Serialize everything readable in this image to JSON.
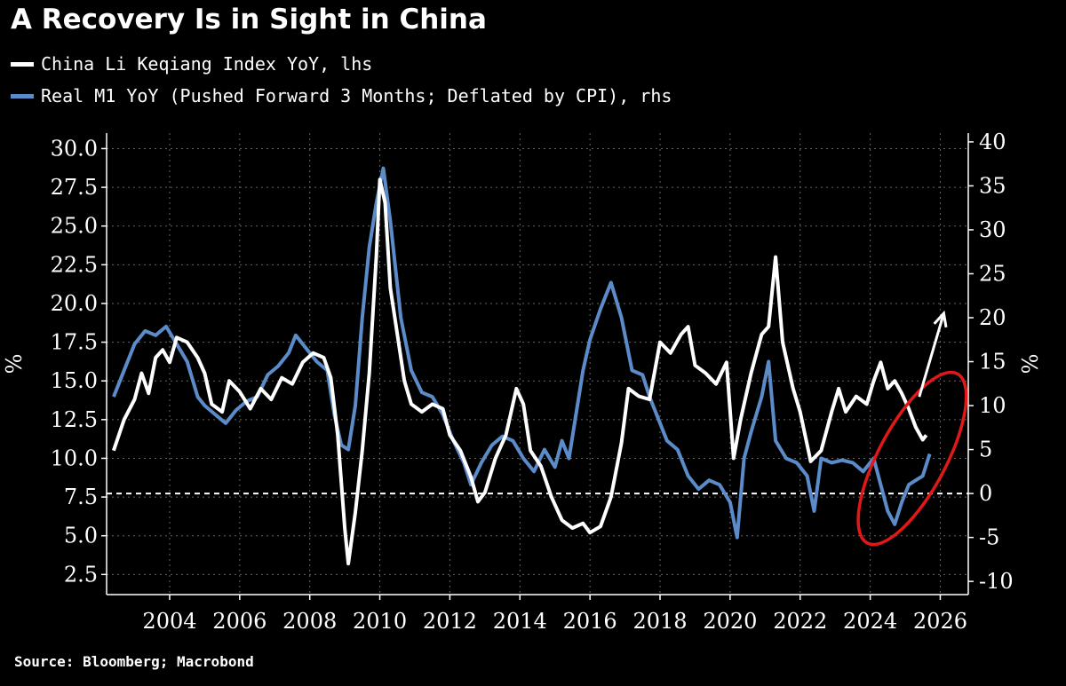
{
  "title": "A Recovery Is in Sight in China",
  "source": "Source: Bloomberg; Macrobond",
  "colors": {
    "background": "#000000",
    "white_series": "#ffffff",
    "blue_series": "#5b8cc9",
    "annotation": "#e01818",
    "grid": "#666666"
  },
  "chart_data": {
    "type": "line",
    "title": "A Recovery Is in Sight in China",
    "x_axis": {
      "range": [
        2002.2,
        2026.8
      ],
      "ticks": [
        2004,
        2006,
        2008,
        2010,
        2012,
        2014,
        2016,
        2018,
        2020,
        2022,
        2024,
        2026
      ]
    },
    "left_axis": {
      "label": "%",
      "range": [
        1.2,
        31.0
      ],
      "ticks": [
        2.5,
        5.0,
        7.5,
        10.0,
        12.5,
        15.0,
        17.5,
        20.0,
        22.5,
        25.0,
        27.5,
        30.0
      ],
      "tick_labels": [
        "2.5",
        "5.0",
        "7.5",
        "10.0",
        "12.5",
        "15.0",
        "17.5",
        "20.0",
        "22.5",
        "25.0",
        "27.5",
        "30.0"
      ]
    },
    "right_axis": {
      "label": "%",
      "range": [
        -11.5,
        41.0
      ],
      "ticks": [
        -10,
        -5,
        0,
        5,
        10,
        15,
        20,
        25,
        30,
        35,
        40
      ],
      "tick_labels": [
        "-10",
        "-5",
        "0",
        "5",
        "10",
        "15",
        "20",
        "25",
        "30",
        "35",
        "40"
      ]
    },
    "zero_line_right": 0,
    "series": [
      {
        "name": "China Li Keqiang Index YoY, lhs",
        "axis": "left",
        "color": "#ffffff",
        "points": [
          [
            2002.4,
            10.5
          ],
          [
            2002.7,
            12.5
          ],
          [
            2003.0,
            13.8
          ],
          [
            2003.2,
            15.5
          ],
          [
            2003.4,
            14.2
          ],
          [
            2003.6,
            16.5
          ],
          [
            2003.8,
            17.0
          ],
          [
            2004.0,
            16.2
          ],
          [
            2004.2,
            17.8
          ],
          [
            2004.5,
            17.5
          ],
          [
            2004.8,
            16.5
          ],
          [
            2005.0,
            15.5
          ],
          [
            2005.2,
            13.5
          ],
          [
            2005.5,
            13.0
          ],
          [
            2005.7,
            15.0
          ],
          [
            2006.0,
            14.3
          ],
          [
            2006.3,
            13.2
          ],
          [
            2006.6,
            14.5
          ],
          [
            2006.9,
            13.8
          ],
          [
            2007.2,
            15.2
          ],
          [
            2007.5,
            14.8
          ],
          [
            2007.8,
            16.2
          ],
          [
            2008.1,
            16.8
          ],
          [
            2008.4,
            16.5
          ],
          [
            2008.6,
            15.2
          ],
          [
            2008.8,
            11.5
          ],
          [
            2009.0,
            5.5
          ],
          [
            2009.1,
            3.2
          ],
          [
            2009.3,
            6.5
          ],
          [
            2009.5,
            10.5
          ],
          [
            2009.7,
            15.5
          ],
          [
            2009.9,
            23.0
          ],
          [
            2010.0,
            28.0
          ],
          [
            2010.15,
            26.5
          ],
          [
            2010.3,
            21.0
          ],
          [
            2010.5,
            18.0
          ],
          [
            2010.7,
            15.0
          ],
          [
            2010.9,
            13.5
          ],
          [
            2011.2,
            13.0
          ],
          [
            2011.5,
            13.5
          ],
          [
            2011.8,
            13.2
          ],
          [
            2012.0,
            11.5
          ],
          [
            2012.3,
            10.5
          ],
          [
            2012.6,
            8.8
          ],
          [
            2012.8,
            7.2
          ],
          [
            2013.0,
            7.8
          ],
          [
            2013.3,
            10.0
          ],
          [
            2013.6,
            11.5
          ],
          [
            2013.9,
            14.5
          ],
          [
            2014.1,
            13.5
          ],
          [
            2014.3,
            10.5
          ],
          [
            2014.6,
            9.5
          ],
          [
            2014.9,
            7.5
          ],
          [
            2015.2,
            6.0
          ],
          [
            2015.5,
            5.5
          ],
          [
            2015.8,
            5.8
          ],
          [
            2016.0,
            5.2
          ],
          [
            2016.3,
            5.6
          ],
          [
            2016.6,
            7.5
          ],
          [
            2016.9,
            11.0
          ],
          [
            2017.1,
            14.5
          ],
          [
            2017.4,
            14.0
          ],
          [
            2017.7,
            13.8
          ],
          [
            2018.0,
            17.5
          ],
          [
            2018.3,
            16.8
          ],
          [
            2018.6,
            18.0
          ],
          [
            2018.8,
            18.5
          ],
          [
            2019.0,
            16.0
          ],
          [
            2019.3,
            15.5
          ],
          [
            2019.6,
            14.8
          ],
          [
            2019.9,
            16.2
          ],
          [
            2020.1,
            10.0
          ],
          [
            2020.3,
            12.5
          ],
          [
            2020.6,
            15.5
          ],
          [
            2020.9,
            18.0
          ],
          [
            2021.1,
            18.5
          ],
          [
            2021.3,
            23.0
          ],
          [
            2021.5,
            17.5
          ],
          [
            2021.8,
            14.5
          ],
          [
            2022.0,
            13.0
          ],
          [
            2022.3,
            9.8
          ],
          [
            2022.6,
            10.5
          ],
          [
            2022.9,
            13.0
          ],
          [
            2023.1,
            14.5
          ],
          [
            2023.3,
            13.0
          ],
          [
            2023.6,
            14.0
          ],
          [
            2023.9,
            13.5
          ],
          [
            2024.1,
            15.0
          ],
          [
            2024.3,
            16.2
          ],
          [
            2024.5,
            14.5
          ],
          [
            2024.7,
            15.0
          ],
          [
            2024.9,
            14.2
          ],
          [
            2025.1,
            13.2
          ],
          [
            2025.3,
            12.0
          ],
          [
            2025.5,
            11.2
          ],
          [
            2025.6,
            11.5
          ]
        ]
      },
      {
        "name": "Real M1 YoY (Pushed Forward 3 Months; Deflated by CPI), rhs",
        "axis": "right",
        "color": "#5b8cc9",
        "points": [
          [
            2002.4,
            11.0
          ],
          [
            2002.7,
            14.0
          ],
          [
            2003.0,
            17.0
          ],
          [
            2003.3,
            18.5
          ],
          [
            2003.6,
            18.0
          ],
          [
            2003.9,
            19.0
          ],
          [
            2004.2,
            17.0
          ],
          [
            2004.5,
            15.0
          ],
          [
            2004.8,
            11.0
          ],
          [
            2005.0,
            10.0
          ],
          [
            2005.3,
            9.0
          ],
          [
            2005.6,
            8.0
          ],
          [
            2005.9,
            9.5
          ],
          [
            2006.2,
            10.5
          ],
          [
            2006.5,
            11.0
          ],
          [
            2006.8,
            13.5
          ],
          [
            2007.1,
            14.5
          ],
          [
            2007.4,
            16.0
          ],
          [
            2007.6,
            18.0
          ],
          [
            2007.9,
            16.5
          ],
          [
            2008.2,
            15.0
          ],
          [
            2008.5,
            14.0
          ],
          [
            2008.7,
            9.0
          ],
          [
            2008.9,
            5.5
          ],
          [
            2009.1,
            5.0
          ],
          [
            2009.3,
            10.0
          ],
          [
            2009.5,
            20.0
          ],
          [
            2009.7,
            28.0
          ],
          [
            2009.9,
            33.0
          ],
          [
            2010.1,
            37.0
          ],
          [
            2010.3,
            31.0
          ],
          [
            2010.6,
            20.0
          ],
          [
            2010.9,
            14.0
          ],
          [
            2011.2,
            11.5
          ],
          [
            2011.5,
            11.0
          ],
          [
            2011.8,
            9.0
          ],
          [
            2012.1,
            6.0
          ],
          [
            2012.4,
            3.5
          ],
          [
            2012.6,
            1.0
          ],
          [
            2012.9,
            3.5
          ],
          [
            2013.2,
            5.5
          ],
          [
            2013.5,
            6.5
          ],
          [
            2013.8,
            6.0
          ],
          [
            2014.1,
            4.0
          ],
          [
            2014.4,
            2.5
          ],
          [
            2014.7,
            5.0
          ],
          [
            2015.0,
            3.0
          ],
          [
            2015.2,
            6.0
          ],
          [
            2015.4,
            4.0
          ],
          [
            2015.6,
            9.0
          ],
          [
            2015.8,
            14.0
          ],
          [
            2016.0,
            17.5
          ],
          [
            2016.3,
            21.0
          ],
          [
            2016.6,
            24.0
          ],
          [
            2016.9,
            20.0
          ],
          [
            2017.2,
            14.0
          ],
          [
            2017.5,
            13.5
          ],
          [
            2017.7,
            11.0
          ],
          [
            2017.9,
            9.0
          ],
          [
            2018.2,
            6.0
          ],
          [
            2018.5,
            5.0
          ],
          [
            2018.8,
            2.0
          ],
          [
            2019.1,
            0.5
          ],
          [
            2019.4,
            1.5
          ],
          [
            2019.7,
            1.0
          ],
          [
            2020.0,
            -1.0
          ],
          [
            2020.2,
            -5.0
          ],
          [
            2020.4,
            4.0
          ],
          [
            2020.6,
            7.0
          ],
          [
            2020.9,
            11.0
          ],
          [
            2021.1,
            15.0
          ],
          [
            2021.3,
            6.0
          ],
          [
            2021.6,
            4.0
          ],
          [
            2021.9,
            3.5
          ],
          [
            2022.2,
            2.0
          ],
          [
            2022.4,
            -2.0
          ],
          [
            2022.6,
            4.0
          ],
          [
            2022.9,
            3.5
          ],
          [
            2023.2,
            3.8
          ],
          [
            2023.5,
            3.5
          ],
          [
            2023.8,
            2.5
          ],
          [
            2024.1,
            4.0
          ],
          [
            2024.3,
            1.0
          ],
          [
            2024.5,
            -2.0
          ],
          [
            2024.7,
            -3.5
          ],
          [
            2024.9,
            -1.0
          ],
          [
            2025.1,
            1.0
          ],
          [
            2025.3,
            1.5
          ],
          [
            2025.5,
            2.0
          ],
          [
            2025.7,
            4.5
          ]
        ]
      }
    ],
    "annotations": [
      {
        "type": "ellipse",
        "color": "#e01818",
        "x_center": 2025.2,
        "right_y_center": 4.0,
        "description": "red circle highlighting recent data"
      },
      {
        "type": "arrow",
        "color": "#ffffff",
        "from": [
          2025.4,
          11.0
        ],
        "to": [
          2026.1,
          20.5
        ],
        "axis": "right"
      }
    ]
  }
}
